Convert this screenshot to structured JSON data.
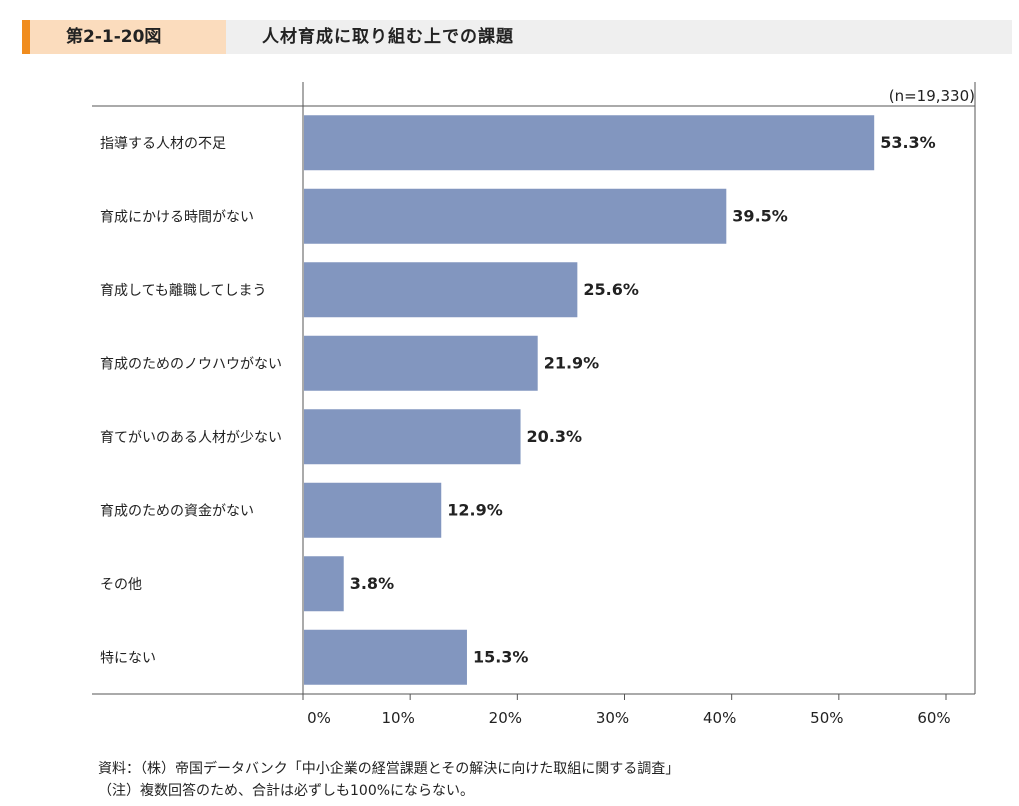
{
  "header": {
    "figure_label": "第2-1-20図",
    "title": "人材育成に取り組む上での課題"
  },
  "chart_data": {
    "type": "bar",
    "orientation": "horizontal",
    "categories": [
      "指導する人材の不足",
      "育成にかける時間がない",
      "育成しても離職してしまう",
      "育成のためのノウハウがない",
      "育てがいのある人材が少ない",
      "育成のための資金がない",
      "その他",
      "特にない"
    ],
    "values": [
      53.3,
      39.5,
      25.6,
      21.9,
      20.3,
      12.9,
      3.8,
      15.3
    ],
    "value_labels": [
      "53.3%",
      "39.5%",
      "25.6%",
      "21.9%",
      "20.3%",
      "12.9%",
      "3.8%",
      "15.3%"
    ],
    "xlim": [
      0,
      60
    ],
    "x_ticks": [
      "0%",
      "10%",
      "20%",
      "30%",
      "40%",
      "50%",
      "60%"
    ],
    "sample_size": "(n=19,330)",
    "bar_color": "#8296bf",
    "grid": false
  },
  "footnotes": {
    "source": "資料：（株）帝国データバンク「中小企業の経営課題とその解決に向けた取組に関する調査」",
    "note": "（注）複数回答のため、合計は必ずしも100%にならない。"
  }
}
